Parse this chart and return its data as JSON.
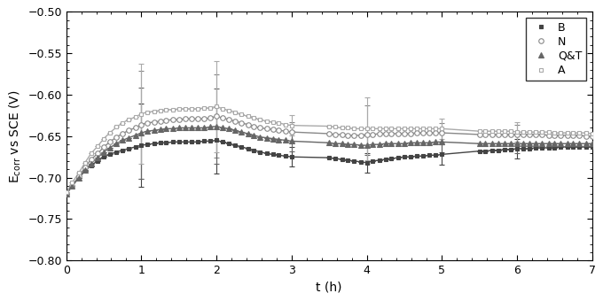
{
  "title": "",
  "xlabel": "t (h)",
  "ylabel": "E$_{corr}$ vs SCE (V)",
  "xlim": [
    0,
    7
  ],
  "ylim": [
    -0.8,
    -0.5
  ],
  "yticks": [
    -0.8,
    -0.75,
    -0.7,
    -0.65,
    -0.6,
    -0.55,
    -0.5
  ],
  "xticks": [
    0,
    1,
    2,
    3,
    4,
    5,
    6,
    7
  ],
  "series": {
    "B": {
      "x": [
        0.0,
        0.08,
        0.17,
        0.25,
        0.33,
        0.42,
        0.5,
        0.58,
        0.67,
        0.75,
        0.83,
        0.92,
        1.0,
        1.08,
        1.17,
        1.25,
        1.33,
        1.42,
        1.5,
        1.58,
        1.67,
        1.75,
        1.83,
        1.92,
        2.0,
        2.08,
        2.17,
        2.25,
        2.33,
        2.42,
        2.5,
        2.58,
        2.67,
        2.75,
        2.83,
        2.92,
        3.0,
        3.5,
        3.58,
        3.67,
        3.75,
        3.83,
        3.92,
        4.0,
        4.08,
        4.17,
        4.25,
        4.33,
        4.42,
        4.5,
        4.58,
        4.67,
        4.75,
        4.83,
        4.92,
        5.0,
        5.5,
        5.58,
        5.67,
        5.75,
        5.83,
        5.92,
        6.0,
        6.08,
        6.17,
        6.25,
        6.33,
        6.42,
        6.5,
        6.58,
        6.67,
        6.75,
        6.83,
        6.92,
        7.0
      ],
      "y": [
        -0.72,
        -0.71,
        -0.7,
        -0.692,
        -0.685,
        -0.68,
        -0.675,
        -0.672,
        -0.669,
        -0.667,
        -0.665,
        -0.663,
        -0.661,
        -0.66,
        -0.659,
        -0.658,
        -0.658,
        -0.657,
        -0.657,
        -0.657,
        -0.657,
        -0.657,
        -0.656,
        -0.656,
        -0.655,
        -0.657,
        -0.659,
        -0.661,
        -0.663,
        -0.665,
        -0.667,
        -0.669,
        -0.671,
        -0.672,
        -0.673,
        -0.674,
        -0.675,
        -0.676,
        -0.677,
        -0.678,
        -0.679,
        -0.68,
        -0.681,
        -0.682,
        -0.68,
        -0.679,
        -0.678,
        -0.677,
        -0.676,
        -0.675,
        -0.675,
        -0.674,
        -0.674,
        -0.673,
        -0.673,
        -0.672,
        -0.668,
        -0.668,
        -0.667,
        -0.667,
        -0.666,
        -0.666,
        -0.665,
        -0.665,
        -0.665,
        -0.664,
        -0.664,
        -0.664,
        -0.664,
        -0.663,
        -0.663,
        -0.663,
        -0.663,
        -0.663,
        -0.663
      ],
      "yerr_x": [
        1.0,
        2.0,
        3.0,
        4.0,
        5.0,
        6.0
      ],
      "yerr_v": [
        0.05,
        0.04,
        0.012,
        0.012,
        0.012,
        0.012
      ],
      "marker": "s",
      "fillstyle": "full",
      "color": "#444444",
      "markersize": 3.5
    },
    "N": {
      "x": [
        0.0,
        0.08,
        0.17,
        0.25,
        0.33,
        0.42,
        0.5,
        0.58,
        0.67,
        0.75,
        0.83,
        0.92,
        1.0,
        1.08,
        1.17,
        1.25,
        1.33,
        1.42,
        1.5,
        1.58,
        1.67,
        1.75,
        1.83,
        1.92,
        2.0,
        2.08,
        2.17,
        2.25,
        2.33,
        2.42,
        2.5,
        2.58,
        2.67,
        2.75,
        2.83,
        2.92,
        3.0,
        3.5,
        3.58,
        3.67,
        3.75,
        3.83,
        3.92,
        4.0,
        4.08,
        4.17,
        4.25,
        4.33,
        4.42,
        4.5,
        4.58,
        4.67,
        4.75,
        4.83,
        4.92,
        5.0,
        5.5,
        5.58,
        5.67,
        5.75,
        5.83,
        5.92,
        6.0,
        6.08,
        6.17,
        6.25,
        6.33,
        6.42,
        6.5,
        6.58,
        6.67,
        6.75,
        6.83,
        6.92,
        7.0
      ],
      "y": [
        -0.72,
        -0.71,
        -0.698,
        -0.688,
        -0.678,
        -0.671,
        -0.663,
        -0.657,
        -0.651,
        -0.647,
        -0.643,
        -0.64,
        -0.636,
        -0.634,
        -0.633,
        -0.632,
        -0.631,
        -0.63,
        -0.63,
        -0.629,
        -0.629,
        -0.629,
        -0.629,
        -0.628,
        -0.626,
        -0.628,
        -0.63,
        -0.632,
        -0.634,
        -0.636,
        -0.638,
        -0.64,
        -0.641,
        -0.642,
        -0.643,
        -0.644,
        -0.645,
        -0.647,
        -0.648,
        -0.648,
        -0.649,
        -0.649,
        -0.649,
        -0.648,
        -0.648,
        -0.647,
        -0.647,
        -0.647,
        -0.647,
        -0.647,
        -0.647,
        -0.646,
        -0.646,
        -0.646,
        -0.646,
        -0.646,
        -0.648,
        -0.648,
        -0.648,
        -0.648,
        -0.648,
        -0.648,
        -0.648,
        -0.648,
        -0.648,
        -0.648,
        -0.648,
        -0.649,
        -0.649,
        -0.649,
        -0.649,
        -0.649,
        -0.649,
        -0.65,
        -0.65
      ],
      "yerr_x": [
        1.0,
        2.0,
        3.0,
        4.0,
        5.0,
        6.0
      ],
      "yerr_v": [
        0.065,
        0.05,
        0.012,
        0.035,
        0.012,
        0.012
      ],
      "marker": "o",
      "fillstyle": "none",
      "color": "#888888",
      "markersize": 4
    },
    "Q&T": {
      "x": [
        0.0,
        0.08,
        0.17,
        0.25,
        0.33,
        0.42,
        0.5,
        0.58,
        0.67,
        0.75,
        0.83,
        0.92,
        1.0,
        1.08,
        1.17,
        1.25,
        1.33,
        1.42,
        1.5,
        1.58,
        1.67,
        1.75,
        1.83,
        1.92,
        2.0,
        2.08,
        2.17,
        2.25,
        2.33,
        2.42,
        2.5,
        2.58,
        2.67,
        2.75,
        2.83,
        2.92,
        3.0,
        3.5,
        3.58,
        3.67,
        3.75,
        3.83,
        3.92,
        4.0,
        4.08,
        4.17,
        4.25,
        4.33,
        4.42,
        4.5,
        4.58,
        4.67,
        4.75,
        4.83,
        4.92,
        5.0,
        5.5,
        5.58,
        5.67,
        5.75,
        5.83,
        5.92,
        6.0,
        6.08,
        6.17,
        6.25,
        6.33,
        6.42,
        6.5,
        6.58,
        6.67,
        6.75,
        6.83,
        6.92,
        7.0
      ],
      "y": [
        -0.72,
        -0.71,
        -0.7,
        -0.691,
        -0.683,
        -0.676,
        -0.669,
        -0.664,
        -0.659,
        -0.655,
        -0.652,
        -0.649,
        -0.646,
        -0.644,
        -0.643,
        -0.642,
        -0.641,
        -0.641,
        -0.64,
        -0.64,
        -0.64,
        -0.64,
        -0.64,
        -0.639,
        -0.638,
        -0.64,
        -0.641,
        -0.643,
        -0.645,
        -0.647,
        -0.649,
        -0.651,
        -0.652,
        -0.653,
        -0.654,
        -0.655,
        -0.656,
        -0.658,
        -0.659,
        -0.659,
        -0.66,
        -0.66,
        -0.661,
        -0.661,
        -0.66,
        -0.66,
        -0.659,
        -0.659,
        -0.659,
        -0.659,
        -0.658,
        -0.658,
        -0.658,
        -0.658,
        -0.657,
        -0.657,
        -0.659,
        -0.659,
        -0.659,
        -0.659,
        -0.659,
        -0.659,
        -0.659,
        -0.659,
        -0.659,
        -0.659,
        -0.659,
        -0.659,
        -0.659,
        -0.659,
        -0.659,
        -0.659,
        -0.659,
        -0.659,
        -0.659
      ],
      "yerr_x": [
        1.0,
        2.0,
        3.0,
        4.0,
        5.0,
        6.0
      ],
      "yerr_v": [
        0.055,
        0.045,
        0.012,
        0.012,
        0.012,
        0.012
      ],
      "marker": "^",
      "fillstyle": "full",
      "color": "#666666",
      "markersize": 4
    },
    "A": {
      "x": [
        0.0,
        0.08,
        0.17,
        0.25,
        0.33,
        0.42,
        0.5,
        0.58,
        0.67,
        0.75,
        0.83,
        0.92,
        1.0,
        1.08,
        1.17,
        1.25,
        1.33,
        1.42,
        1.5,
        1.58,
        1.67,
        1.75,
        1.83,
        1.92,
        2.0,
        2.08,
        2.17,
        2.25,
        2.33,
        2.42,
        2.5,
        2.58,
        2.67,
        2.75,
        2.83,
        2.92,
        3.0,
        3.5,
        3.58,
        3.67,
        3.75,
        3.83,
        3.92,
        4.0,
        4.08,
        4.17,
        4.25,
        4.33,
        4.42,
        4.5,
        4.58,
        4.67,
        4.75,
        4.83,
        4.92,
        5.0,
        5.5,
        5.58,
        5.67,
        5.75,
        5.83,
        5.92,
        6.0,
        6.08,
        6.17,
        6.25,
        6.33,
        6.42,
        6.5,
        6.58,
        6.67,
        6.75,
        6.83,
        6.92,
        7.0
      ],
      "y": [
        -0.718,
        -0.706,
        -0.694,
        -0.682,
        -0.671,
        -0.662,
        -0.653,
        -0.646,
        -0.639,
        -0.634,
        -0.63,
        -0.627,
        -0.623,
        -0.621,
        -0.62,
        -0.619,
        -0.618,
        -0.618,
        -0.617,
        -0.617,
        -0.617,
        -0.617,
        -0.616,
        -0.616,
        -0.614,
        -0.617,
        -0.619,
        -0.621,
        -0.624,
        -0.626,
        -0.628,
        -0.63,
        -0.632,
        -0.633,
        -0.634,
        -0.636,
        -0.637,
        -0.638,
        -0.639,
        -0.64,
        -0.64,
        -0.641,
        -0.641,
        -0.641,
        -0.641,
        -0.641,
        -0.641,
        -0.641,
        -0.641,
        -0.641,
        -0.641,
        -0.641,
        -0.641,
        -0.641,
        -0.641,
        -0.641,
        -0.644,
        -0.644,
        -0.644,
        -0.644,
        -0.644,
        -0.644,
        -0.645,
        -0.645,
        -0.645,
        -0.645,
        -0.645,
        -0.645,
        -0.646,
        -0.646,
        -0.646,
        -0.646,
        -0.646,
        -0.646,
        -0.647
      ],
      "yerr_x": [
        1.0,
        2.0,
        3.0,
        4.0,
        5.0,
        6.0
      ],
      "yerr_v": [
        0.06,
        0.055,
        0.012,
        0.038,
        0.012,
        0.012
      ],
      "marker": "s",
      "fillstyle": "none",
      "color": "#aaaaaa",
      "markersize": 3.5
    }
  },
  "legend_order": [
    "B",
    "N",
    "Q&T",
    "A"
  ],
  "background_color": "#ffffff",
  "line_width": 1.0
}
